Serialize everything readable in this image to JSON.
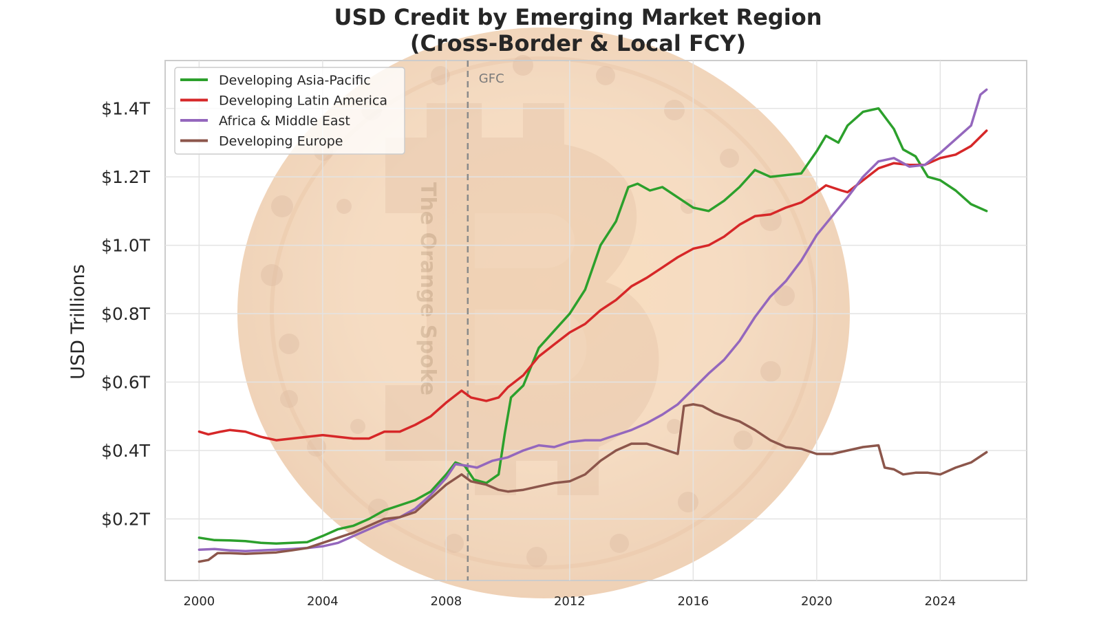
{
  "chart_data": {
    "type": "line",
    "title_line1": "USD Credit by Emerging Market Region",
    "title_line2": "(Cross-Border & Local FCY)",
    "ylabel": "USD Trillions",
    "xlabel": "",
    "xlim": [
      1998.9,
      2026.8
    ],
    "ylim": [
      0.02,
      1.54
    ],
    "x_ticks": [
      2000,
      2004,
      2008,
      2012,
      2016,
      2020,
      2024
    ],
    "x_tick_labels": [
      "2000",
      "2004",
      "2008",
      "2012",
      "2016",
      "2020",
      "2024"
    ],
    "y_ticks": [
      0.2,
      0.4,
      0.6,
      0.8,
      1.0,
      1.2,
      1.4
    ],
    "y_tick_labels": [
      "$0.2T",
      "$0.4T",
      "$0.6T",
      "$0.8T",
      "$1.0T",
      "$1.2T",
      "$1.4T"
    ],
    "grid": true,
    "legend_position": "upper-left",
    "annotation": {
      "label": "GFC",
      "x": 2008.7
    },
    "watermark_text": "The Orange Spoke",
    "series": [
      {
        "name": "Developing Asia-Pacific",
        "color": "#2ca02c",
        "points": [
          [
            2000,
            0.145
          ],
          [
            2000.5,
            0.138
          ],
          [
            2001,
            0.137
          ],
          [
            2001.5,
            0.135
          ],
          [
            2002,
            0.13
          ],
          [
            2002.5,
            0.128
          ],
          [
            2003,
            0.13
          ],
          [
            2003.5,
            0.132
          ],
          [
            2004,
            0.15
          ],
          [
            2004.5,
            0.17
          ],
          [
            2005,
            0.18
          ],
          [
            2005.5,
            0.2
          ],
          [
            2006,
            0.225
          ],
          [
            2006.5,
            0.24
          ],
          [
            2007,
            0.255
          ],
          [
            2007.5,
            0.28
          ],
          [
            2008,
            0.33
          ],
          [
            2008.3,
            0.365
          ],
          [
            2008.6,
            0.355
          ],
          [
            2008.9,
            0.315
          ],
          [
            2009.3,
            0.305
          ],
          [
            2009.7,
            0.33
          ],
          [
            2009.9,
            0.45
          ],
          [
            2010.1,
            0.555
          ],
          [
            2010.5,
            0.59
          ],
          [
            2011,
            0.7
          ],
          [
            2011.5,
            0.75
          ],
          [
            2012,
            0.8
          ],
          [
            2012.5,
            0.87
          ],
          [
            2013,
            1.0
          ],
          [
            2013.5,
            1.07
          ],
          [
            2013.9,
            1.17
          ],
          [
            2014.2,
            1.18
          ],
          [
            2014.6,
            1.16
          ],
          [
            2015,
            1.17
          ],
          [
            2015.5,
            1.14
          ],
          [
            2016,
            1.11
          ],
          [
            2016.5,
            1.1
          ],
          [
            2017,
            1.13
          ],
          [
            2017.5,
            1.17
          ],
          [
            2018,
            1.22
          ],
          [
            2018.5,
            1.2
          ],
          [
            2019,
            1.205
          ],
          [
            2019.5,
            1.21
          ],
          [
            2020,
            1.275
          ],
          [
            2020.3,
            1.32
          ],
          [
            2020.7,
            1.3
          ],
          [
            2021,
            1.35
          ],
          [
            2021.5,
            1.39
          ],
          [
            2022,
            1.4
          ],
          [
            2022.5,
            1.34
          ],
          [
            2022.8,
            1.28
          ],
          [
            2023.2,
            1.26
          ],
          [
            2023.6,
            1.2
          ],
          [
            2024,
            1.19
          ],
          [
            2024.5,
            1.16
          ],
          [
            2025,
            1.12
          ],
          [
            2025.5,
            1.1
          ]
        ]
      },
      {
        "name": "Developing Latin America",
        "color": "#d62728",
        "points": [
          [
            2000,
            0.455
          ],
          [
            2000.3,
            0.447
          ],
          [
            2000.7,
            0.455
          ],
          [
            2001,
            0.46
          ],
          [
            2001.5,
            0.455
          ],
          [
            2002,
            0.44
          ],
          [
            2002.5,
            0.43
          ],
          [
            2003,
            0.435
          ],
          [
            2003.5,
            0.44
          ],
          [
            2004,
            0.445
          ],
          [
            2004.5,
            0.44
          ],
          [
            2005,
            0.435
          ],
          [
            2005.5,
            0.435
          ],
          [
            2006,
            0.455
          ],
          [
            2006.5,
            0.455
          ],
          [
            2007,
            0.475
          ],
          [
            2007.5,
            0.5
          ],
          [
            2008,
            0.54
          ],
          [
            2008.5,
            0.575
          ],
          [
            2008.8,
            0.555
          ],
          [
            2009.3,
            0.545
          ],
          [
            2009.7,
            0.555
          ],
          [
            2010,
            0.585
          ],
          [
            2010.5,
            0.62
          ],
          [
            2011,
            0.675
          ],
          [
            2011.5,
            0.71
          ],
          [
            2012,
            0.745
          ],
          [
            2012.5,
            0.77
          ],
          [
            2013,
            0.81
          ],
          [
            2013.5,
            0.84
          ],
          [
            2014,
            0.88
          ],
          [
            2014.5,
            0.905
          ],
          [
            2015,
            0.935
          ],
          [
            2015.5,
            0.965
          ],
          [
            2016,
            0.99
          ],
          [
            2016.5,
            1.0
          ],
          [
            2017,
            1.025
          ],
          [
            2017.5,
            1.06
          ],
          [
            2018,
            1.085
          ],
          [
            2018.5,
            1.09
          ],
          [
            2019,
            1.11
          ],
          [
            2019.5,
            1.125
          ],
          [
            2020,
            1.155
          ],
          [
            2020.3,
            1.175
          ],
          [
            2020.8,
            1.16
          ],
          [
            2021,
            1.155
          ],
          [
            2021.5,
            1.19
          ],
          [
            2022,
            1.225
          ],
          [
            2022.5,
            1.24
          ],
          [
            2023,
            1.235
          ],
          [
            2023.5,
            1.235
          ],
          [
            2024,
            1.255
          ],
          [
            2024.5,
            1.265
          ],
          [
            2025,
            1.29
          ],
          [
            2025.5,
            1.335
          ]
        ]
      },
      {
        "name": "Africa & Middle East",
        "color": "#9467bd",
        "points": [
          [
            2000,
            0.11
          ],
          [
            2000.5,
            0.112
          ],
          [
            2001,
            0.108
          ],
          [
            2001.5,
            0.106
          ],
          [
            2002,
            0.108
          ],
          [
            2002.5,
            0.11
          ],
          [
            2003,
            0.112
          ],
          [
            2003.5,
            0.115
          ],
          [
            2004,
            0.12
          ],
          [
            2004.5,
            0.13
          ],
          [
            2005,
            0.15
          ],
          [
            2005.5,
            0.17
          ],
          [
            2006,
            0.19
          ],
          [
            2006.5,
            0.205
          ],
          [
            2007,
            0.23
          ],
          [
            2007.5,
            0.27
          ],
          [
            2008,
            0.32
          ],
          [
            2008.3,
            0.36
          ],
          [
            2008.7,
            0.355
          ],
          [
            2009,
            0.35
          ],
          [
            2009.5,
            0.37
          ],
          [
            2010,
            0.38
          ],
          [
            2010.5,
            0.4
          ],
          [
            2011,
            0.415
          ],
          [
            2011.5,
            0.41
          ],
          [
            2012,
            0.425
          ],
          [
            2012.5,
            0.43
          ],
          [
            2013,
            0.43
          ],
          [
            2013.5,
            0.445
          ],
          [
            2014,
            0.46
          ],
          [
            2014.5,
            0.48
          ],
          [
            2015,
            0.505
          ],
          [
            2015.5,
            0.535
          ],
          [
            2016,
            0.58
          ],
          [
            2016.5,
            0.625
          ],
          [
            2017,
            0.665
          ],
          [
            2017.5,
            0.72
          ],
          [
            2018,
            0.79
          ],
          [
            2018.5,
            0.85
          ],
          [
            2019,
            0.895
          ],
          [
            2019.5,
            0.955
          ],
          [
            2020,
            1.03
          ],
          [
            2020.5,
            1.085
          ],
          [
            2021,
            1.14
          ],
          [
            2021.5,
            1.2
          ],
          [
            2022,
            1.245
          ],
          [
            2022.5,
            1.255
          ],
          [
            2023,
            1.23
          ],
          [
            2023.5,
            1.235
          ],
          [
            2024,
            1.27
          ],
          [
            2024.5,
            1.31
          ],
          [
            2025,
            1.35
          ],
          [
            2025.3,
            1.44
          ],
          [
            2025.5,
            1.455
          ]
        ]
      },
      {
        "name": "Developing Europe",
        "color": "#8c564b",
        "points": [
          [
            2000,
            0.075
          ],
          [
            2000.3,
            0.08
          ],
          [
            2000.6,
            0.1
          ],
          [
            2001,
            0.1
          ],
          [
            2001.5,
            0.098
          ],
          [
            2002,
            0.1
          ],
          [
            2002.5,
            0.102
          ],
          [
            2003,
            0.108
          ],
          [
            2003.5,
            0.115
          ],
          [
            2004,
            0.13
          ],
          [
            2004.5,
            0.145
          ],
          [
            2005,
            0.16
          ],
          [
            2005.5,
            0.18
          ],
          [
            2006,
            0.2
          ],
          [
            2006.5,
            0.205
          ],
          [
            2007,
            0.22
          ],
          [
            2007.5,
            0.26
          ],
          [
            2008,
            0.3
          ],
          [
            2008.5,
            0.33
          ],
          [
            2008.8,
            0.31
          ],
          [
            2009.3,
            0.3
          ],
          [
            2009.7,
            0.285
          ],
          [
            2010,
            0.28
          ],
          [
            2010.5,
            0.285
          ],
          [
            2011,
            0.295
          ],
          [
            2011.5,
            0.305
          ],
          [
            2012,
            0.31
          ],
          [
            2012.5,
            0.33
          ],
          [
            2013,
            0.37
          ],
          [
            2013.5,
            0.4
          ],
          [
            2014,
            0.42
          ],
          [
            2014.5,
            0.42
          ],
          [
            2015,
            0.405
          ],
          [
            2015.5,
            0.39
          ],
          [
            2015.7,
            0.53
          ],
          [
            2016,
            0.535
          ],
          [
            2016.3,
            0.53
          ],
          [
            2016.7,
            0.51
          ],
          [
            2017,
            0.5
          ],
          [
            2017.5,
            0.485
          ],
          [
            2018,
            0.46
          ],
          [
            2018.5,
            0.43
          ],
          [
            2019,
            0.41
          ],
          [
            2019.5,
            0.405
          ],
          [
            2020,
            0.39
          ],
          [
            2020.5,
            0.39
          ],
          [
            2021,
            0.4
          ],
          [
            2021.5,
            0.41
          ],
          [
            2022,
            0.415
          ],
          [
            2022.2,
            0.35
          ],
          [
            2022.5,
            0.345
          ],
          [
            2022.8,
            0.33
          ],
          [
            2023.2,
            0.335
          ],
          [
            2023.6,
            0.335
          ],
          [
            2024,
            0.33
          ],
          [
            2024.5,
            0.35
          ],
          [
            2025,
            0.365
          ],
          [
            2025.5,
            0.395
          ]
        ]
      }
    ]
  }
}
